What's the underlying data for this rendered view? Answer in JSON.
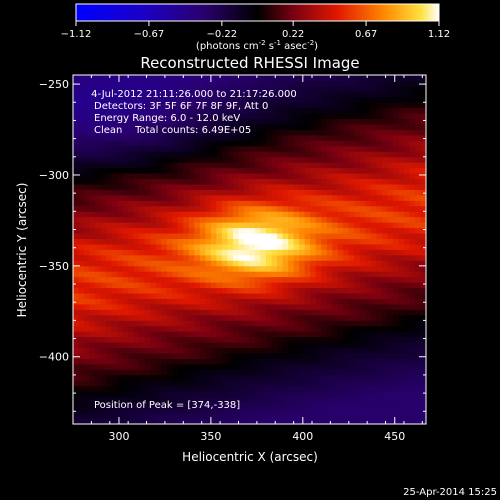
{
  "chart_data": {
    "type": "heatmap",
    "title": "Reconstructed RHESSI Image",
    "xlabel": "Heliocentric X (arcsec)",
    "ylabel": "Heliocentric Y (arcsec)",
    "xlim": [
      275,
      467
    ],
    "ylim": [
      -437,
      -245
    ],
    "x_ticks": [
      300,
      350,
      400,
      450
    ],
    "y_ticks": [
      -250,
      -300,
      -350,
      -400
    ],
    "colorbar": {
      "ticks": [
        "-1.12",
        "-0.67",
        "-0.22",
        "0.22",
        "0.67",
        "1.12"
      ],
      "range": [
        -1.12,
        1.12
      ],
      "unit_label": "(photons cm",
      "unit_exp1": "-2",
      "unit_mid": " s",
      "unit_exp2": "-1",
      "unit_mid2": " asec",
      "unit_exp3": "-2",
      "unit_end": ")"
    },
    "annotations": [
      " 4-Jul-2012 21:11:26.000 to 21:17:26.000",
      "Detectors: 3F 5F 6F 7F 8F 9F, Att 0",
      "Energy Range: 6.0 - 12.0 keV",
      "Clean    Total counts: 6.49E+05"
    ],
    "peak_label": "Position of Peak = [374,-338]",
    "peak": [
      374,
      -338
    ],
    "footer_date": "25-Apr-2014 15:25",
    "colors": {
      "negative_low": "#0000ff",
      "zero": "#000000",
      "positive_high": "#ffffff"
    }
  }
}
